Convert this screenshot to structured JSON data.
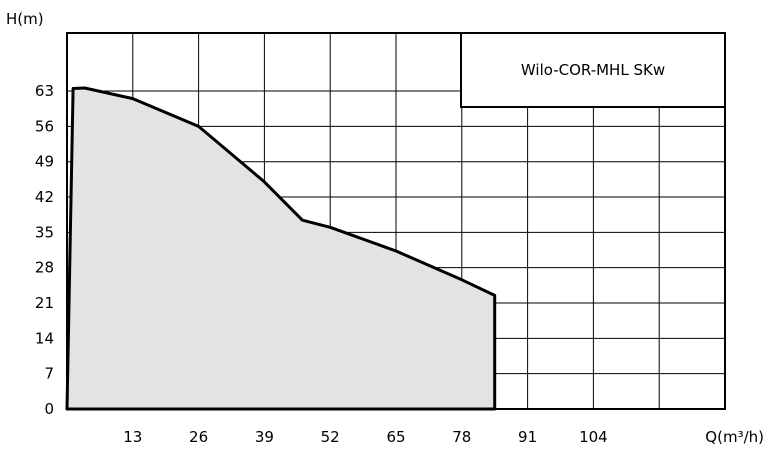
{
  "chart_data": {
    "type": "area",
    "title": "",
    "xlabel": "Q(m³/h)",
    "ylabel": "H(m)",
    "xlim": [
      0,
      130
    ],
    "ylim": [
      0,
      74.5
    ],
    "x_ticks": [
      "13",
      "26",
      "39",
      "52",
      "65",
      "78",
      "91",
      "104"
    ],
    "y_ticks": [
      "0",
      "7",
      "14",
      "21",
      "28",
      "35",
      "42",
      "49",
      "56",
      "63"
    ],
    "grid": true,
    "legend_position": "top-right",
    "series": [
      {
        "name": "Wilo-COR-MHL SKw",
        "color": "#000000",
        "fill": "#e3e3e3",
        "x": [
          0,
          1.2,
          3.5,
          13,
          26,
          39,
          46.5,
          52,
          65,
          78,
          84.5,
          84.5,
          0
        ],
        "y": [
          0,
          63.5,
          63.6,
          61.5,
          56,
          45,
          37.4,
          36,
          31.3,
          25.6,
          22.5,
          0,
          0
        ]
      }
    ]
  }
}
